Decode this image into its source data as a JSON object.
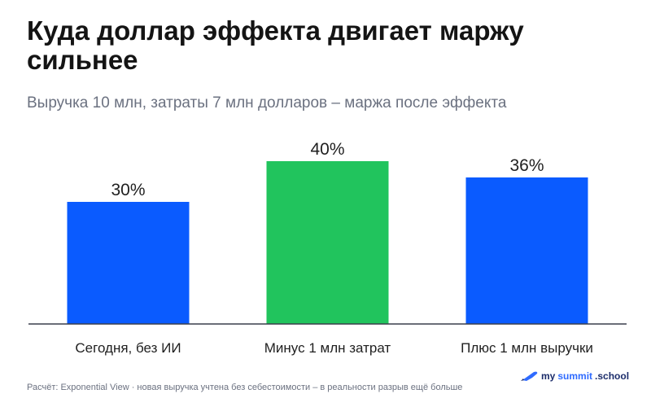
{
  "header": {
    "title": "Куда доллар эффекта двигает маржу сильнее",
    "subtitle": "Выручка 10 млн, затраты 7 млн долларов – маржа после эффекта"
  },
  "chart_data": {
    "type": "bar",
    "categories": [
      "Сегодня, без ИИ",
      "Минус 1 млн затрат",
      "Плюс 1 млн выручки"
    ],
    "values": [
      30,
      40,
      36
    ],
    "value_labels": [
      "30%",
      "40%",
      "36%"
    ],
    "colors": [
      "#0a5bff",
      "#21c45d",
      "#0a5bff"
    ],
    "ylim": [
      0,
      48
    ],
    "grid": false,
    "legend": "none"
  },
  "footer": {
    "note": "Расчёт: Exponential View · новая выручка учтена без себестоимости – в реальности разрыв ещё больше",
    "brand_part1": "my",
    "brand_part2": "summit",
    "brand_part3": ".school",
    "brand_icon": "rocket-icon"
  }
}
